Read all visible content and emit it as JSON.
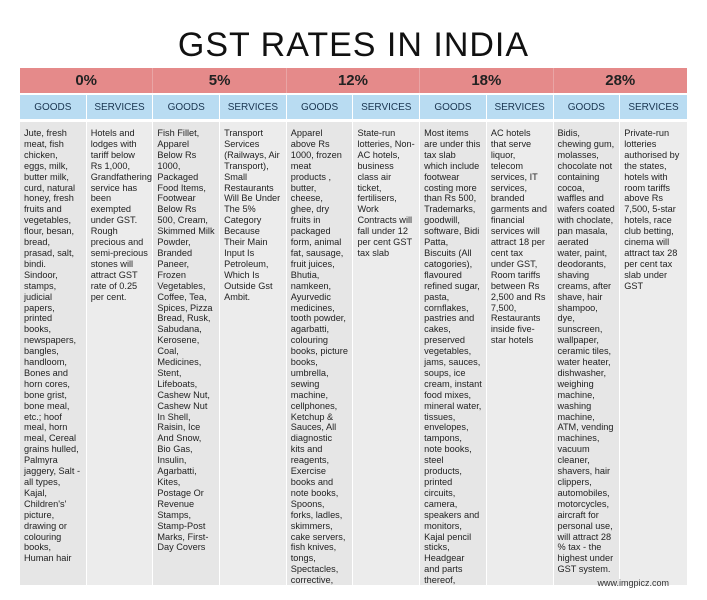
{
  "title": "GST RATES IN INDIA",
  "rates": [
    "0%",
    "5%",
    "12%",
    "18%",
    "28%"
  ],
  "headers": [
    "GOODS",
    "SERVICES",
    "GOODS",
    "SERVICES",
    "GOODS",
    "SERVICES",
    "GOODS",
    "SERVICES",
    "GOODS",
    "SERVICES"
  ],
  "columns": [
    "Jute, fresh meat, fish chicken, eggs, milk, butter milk, curd, natural honey, fresh fruits and vegetables, flour, besan, bread, prasad, salt, bindi. Sindoor, stamps, judicial papers, printed books, newspapers, bangles, handloom, Bones and horn cores, bone grist, bone meal, etc.; hoof meal, horn meal, Cereal grains hulled, Palmyra jaggery, Salt - all types, Kajal, Children's' picture, drawing or colouring books, Human hair",
    "Hotels and lodges with tariff below Rs 1,000, Grandfathering service has been exempted under GST. Rough precious and semi-precious stones will attract GST rate of 0.25 per cent.",
    "Fish Fillet, Apparel Below Rs 1000, Packaged Food Items, Footwear Below Rs 500, Cream, Skimmed Milk Powder, Branded Paneer, Frozen Vegetables, Coffee, Tea, Spices, Pizza Bread, Rusk, Sabudana, Kerosene, Coal, Medicines, Stent, Lifeboats, Cashew Nut, Cashew Nut In Shell, Raisin, Ice And Snow, Bio Gas, Insulin, Agarbatti, Kites, Postage Or Revenue Stamps, Stamp-Post Marks, First-Day Covers",
    "Transport Services (Railways, Air Transport), Small Restaurants Will Be Under The 5% Category Because Their Main Input Is Petroleum, Which Is Outside Gst Ambit.",
    "Apparel above Rs 1000, frozen meat products , butter, cheese, ghee, dry fruits in packaged form, animal fat, sausage, fruit juices, Bhutia, namkeen, Ayurvedic medicines, tooth powder, agarbatti, colouring books, picture books, umbrella, sewing machine, cellphones, Ketchup & Sauces, All diagnostic kits and reagents, Exercise books and note books, Spoons, forks, ladles, skimmers, cake servers, fish knives, tongs, Spectacles, corrective, Playing cards, chess board, carom board and other board g ..",
    "State-run lotteries, Non-AC hotels, business class air ticket, fertilisers, Work Contracts will fall under 12 per cent GST tax slab",
    "Most items are under this tax slab which include footwear costing more than Rs 500, Trademarks, goodwill, software, Bidi Patta, Biscuits (All catogories), flavoured refined sugar, pasta, cornflakes, pastries and cakes, preserved vegetables, jams, sauces, soups, ice cream, instant food mixes, mineral water, tissues, envelopes, tampons, note books, steel products, printed circuits, camera, speakers and monitors, Kajal pencil sticks, Headgear and parts thereof, Aluminium foil, Weighing Machinery.",
    "AC hotels that serve liquor, telecom services, IT services, branded garments and financial services will attract 18 per cent tax under GST, Room tariffs between Rs 2,500 and Rs 7,500, Restaurants inside five-star hotels",
    "Bidis, chewing gum, molasses, chocolate not containing cocoa, waffles and wafers coated with choclate, pan masala, aerated water, paint, deodorants, shaving creams, after shave, hair shampoo, dye, sunscreen, wallpaper, ceramic tiles, water heater, dishwasher, weighing machine, washing machine, ATM, vending machines, vacuum cleaner, shavers, hair clippers, automobiles, motorcycles, aircraft for personal use, will attract 28 % tax - the highest under GST system.",
    "Private-run lotteries authorised by the states, hotels with room tariffs above Rs 7,500, 5-star hotels, race club betting, cinema will attract tax 28 per cent tax slab under GST"
  ],
  "footer": "www.imgpicz.com",
  "colors": {
    "rate_band": "#e58a8a",
    "header_band": "#b9dcf2",
    "cell_bg": "#e6e6e6"
  }
}
